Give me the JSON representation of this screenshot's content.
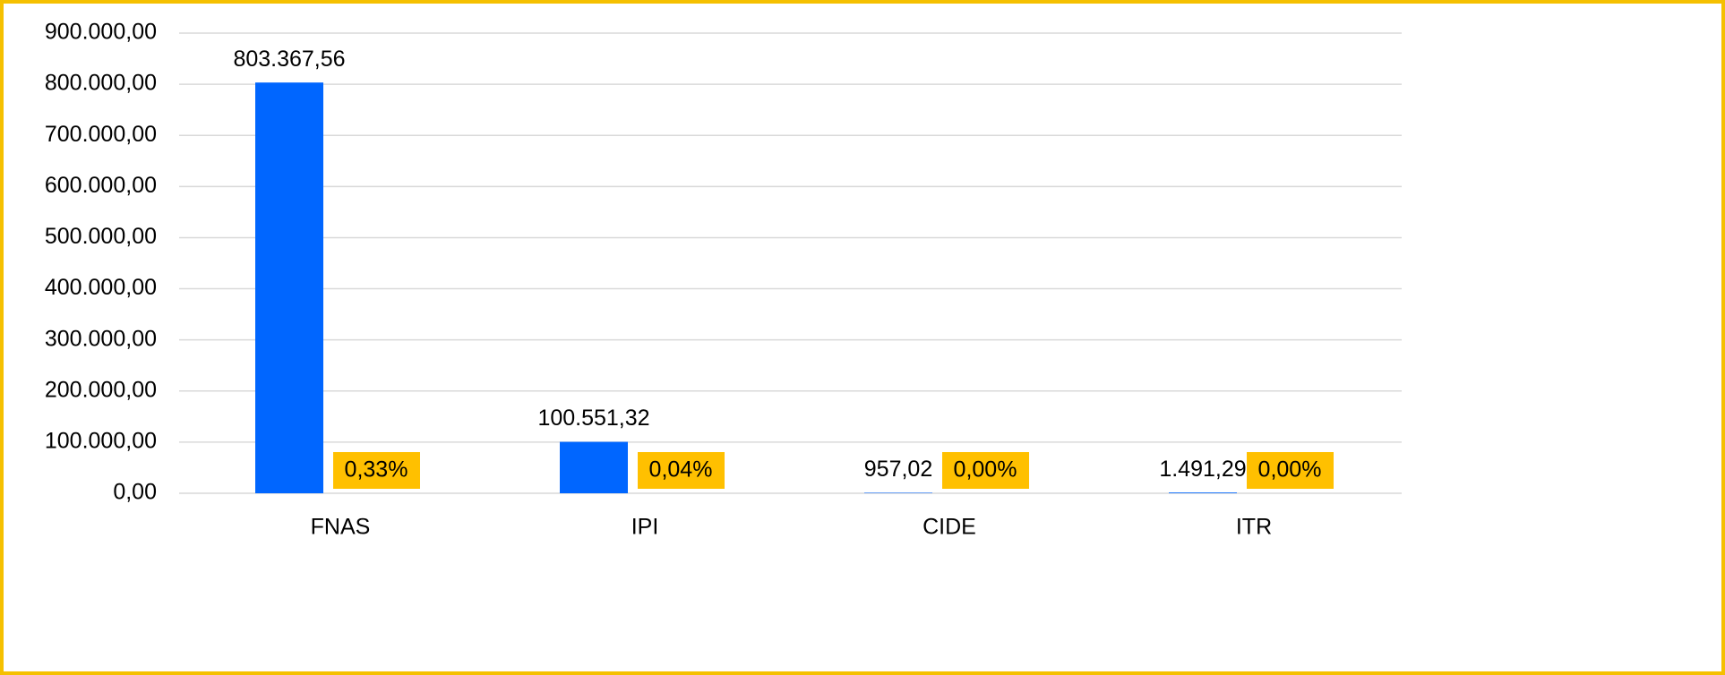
{
  "chart_data": {
    "type": "bar",
    "categories": [
      "FNAS",
      "IPI",
      "CIDE",
      "ITR"
    ],
    "series": [
      {
        "color": "#0066ff",
        "values": [
          803367.56,
          100551.32,
          957.02,
          1491.29
        ],
        "value_labels": [
          "803.367,56",
          "100.551,32",
          "957,02",
          "1.491,29"
        ]
      },
      {
        "color": "#ffc000",
        "values": [
          0.33,
          0.04,
          0,
          0
        ],
        "value_labels": [
          "0,33%",
          "0,04%",
          "0,00%",
          "0,00%"
        ]
      }
    ],
    "ylim": [
      0,
      900000
    ],
    "yticks": [
      {
        "value": 0,
        "label": "0,00"
      },
      {
        "value": 100000,
        "label": "100.000,00"
      },
      {
        "value": 200000,
        "label": "200.000,00"
      },
      {
        "value": 300000,
        "label": "300.000,00"
      },
      {
        "value": 400000,
        "label": "400.000,00"
      },
      {
        "value": 500000,
        "label": "500.000,00"
      },
      {
        "value": 600000,
        "label": "600.000,00"
      },
      {
        "value": 700000,
        "label": "700.000,00"
      },
      {
        "value": 800000,
        "label": "800.000,00"
      },
      {
        "value": 900000,
        "label": "900.000,00"
      }
    ],
    "grid": true
  }
}
